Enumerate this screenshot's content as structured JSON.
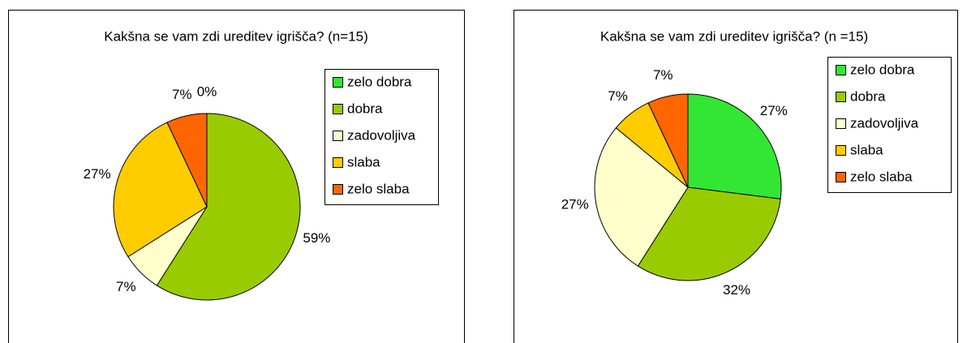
{
  "chart_data": [
    {
      "type": "pie",
      "title": "Kakšna se vam zdi ureditev igrišča? (n=15)",
      "categories": [
        "zelo dobra",
        "dobra",
        "zadovoljiva",
        "slaba",
        "zelo slaba"
      ],
      "values": [
        0,
        59,
        7,
        27,
        7
      ],
      "value_labels": [
        "0%",
        "59%",
        "7%",
        "27%",
        "7%"
      ],
      "colors": [
        "#33e633",
        "#99cc00",
        "#ffffcc",
        "#ffcc00",
        "#ff6600"
      ]
    },
    {
      "type": "pie",
      "title": "Kakšna se vam zdi ureditev igrišča? (n =15)",
      "categories": [
        "zelo dobra",
        "dobra",
        "zadovoljiva",
        "slaba",
        "zelo slaba"
      ],
      "values": [
        27,
        32,
        27,
        7,
        7
      ],
      "value_labels": [
        "27%",
        "32%",
        "27%",
        "7%",
        "7%"
      ],
      "colors": [
        "#33e633",
        "#99cc00",
        "#ffffcc",
        "#ffcc00",
        "#ff6600"
      ]
    }
  ]
}
